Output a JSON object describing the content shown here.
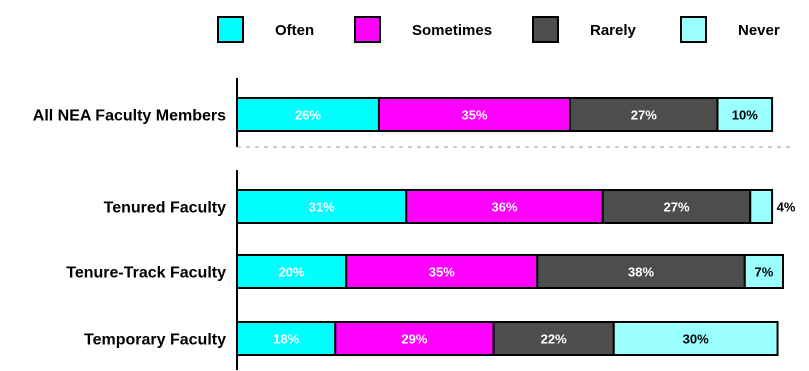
{
  "chart_data": {
    "type": "bar",
    "orientation": "horizontal",
    "stacked": true,
    "title": "",
    "xlabel": "",
    "ylabel": "",
    "grid": false,
    "legend_position": "top",
    "categories": [
      "All NEA Faculty Members",
      "Tenured Faculty",
      "Tenure-Track Faculty",
      "Temporary Faculty"
    ],
    "series": [
      {
        "name": "Often",
        "color": "#00ffff",
        "label_color": "#ffffff",
        "values": [
          26,
          31,
          20,
          18
        ],
        "labels": [
          "26%",
          "31%",
          "20%",
          "18%"
        ]
      },
      {
        "name": "Sometimes",
        "color": "#ff00ff",
        "label_color": "#ffffff",
        "values": [
          35,
          36,
          35,
          29
        ],
        "labels": [
          "35%",
          "36%",
          "35%",
          "29%"
        ]
      },
      {
        "name": "Rarely",
        "color": "#4d4d4d",
        "label_color": "#ffffff",
        "values": [
          27,
          27,
          38,
          22
        ],
        "labels": [
          "27%",
          "27%",
          "38%",
          "22%"
        ]
      },
      {
        "name": "Never",
        "color": "#99ffff",
        "label_color": "#000000",
        "values": [
          10,
          4,
          7,
          30
        ],
        "labels": [
          "10%",
          "4%",
          "7%",
          "30%"
        ]
      }
    ]
  }
}
